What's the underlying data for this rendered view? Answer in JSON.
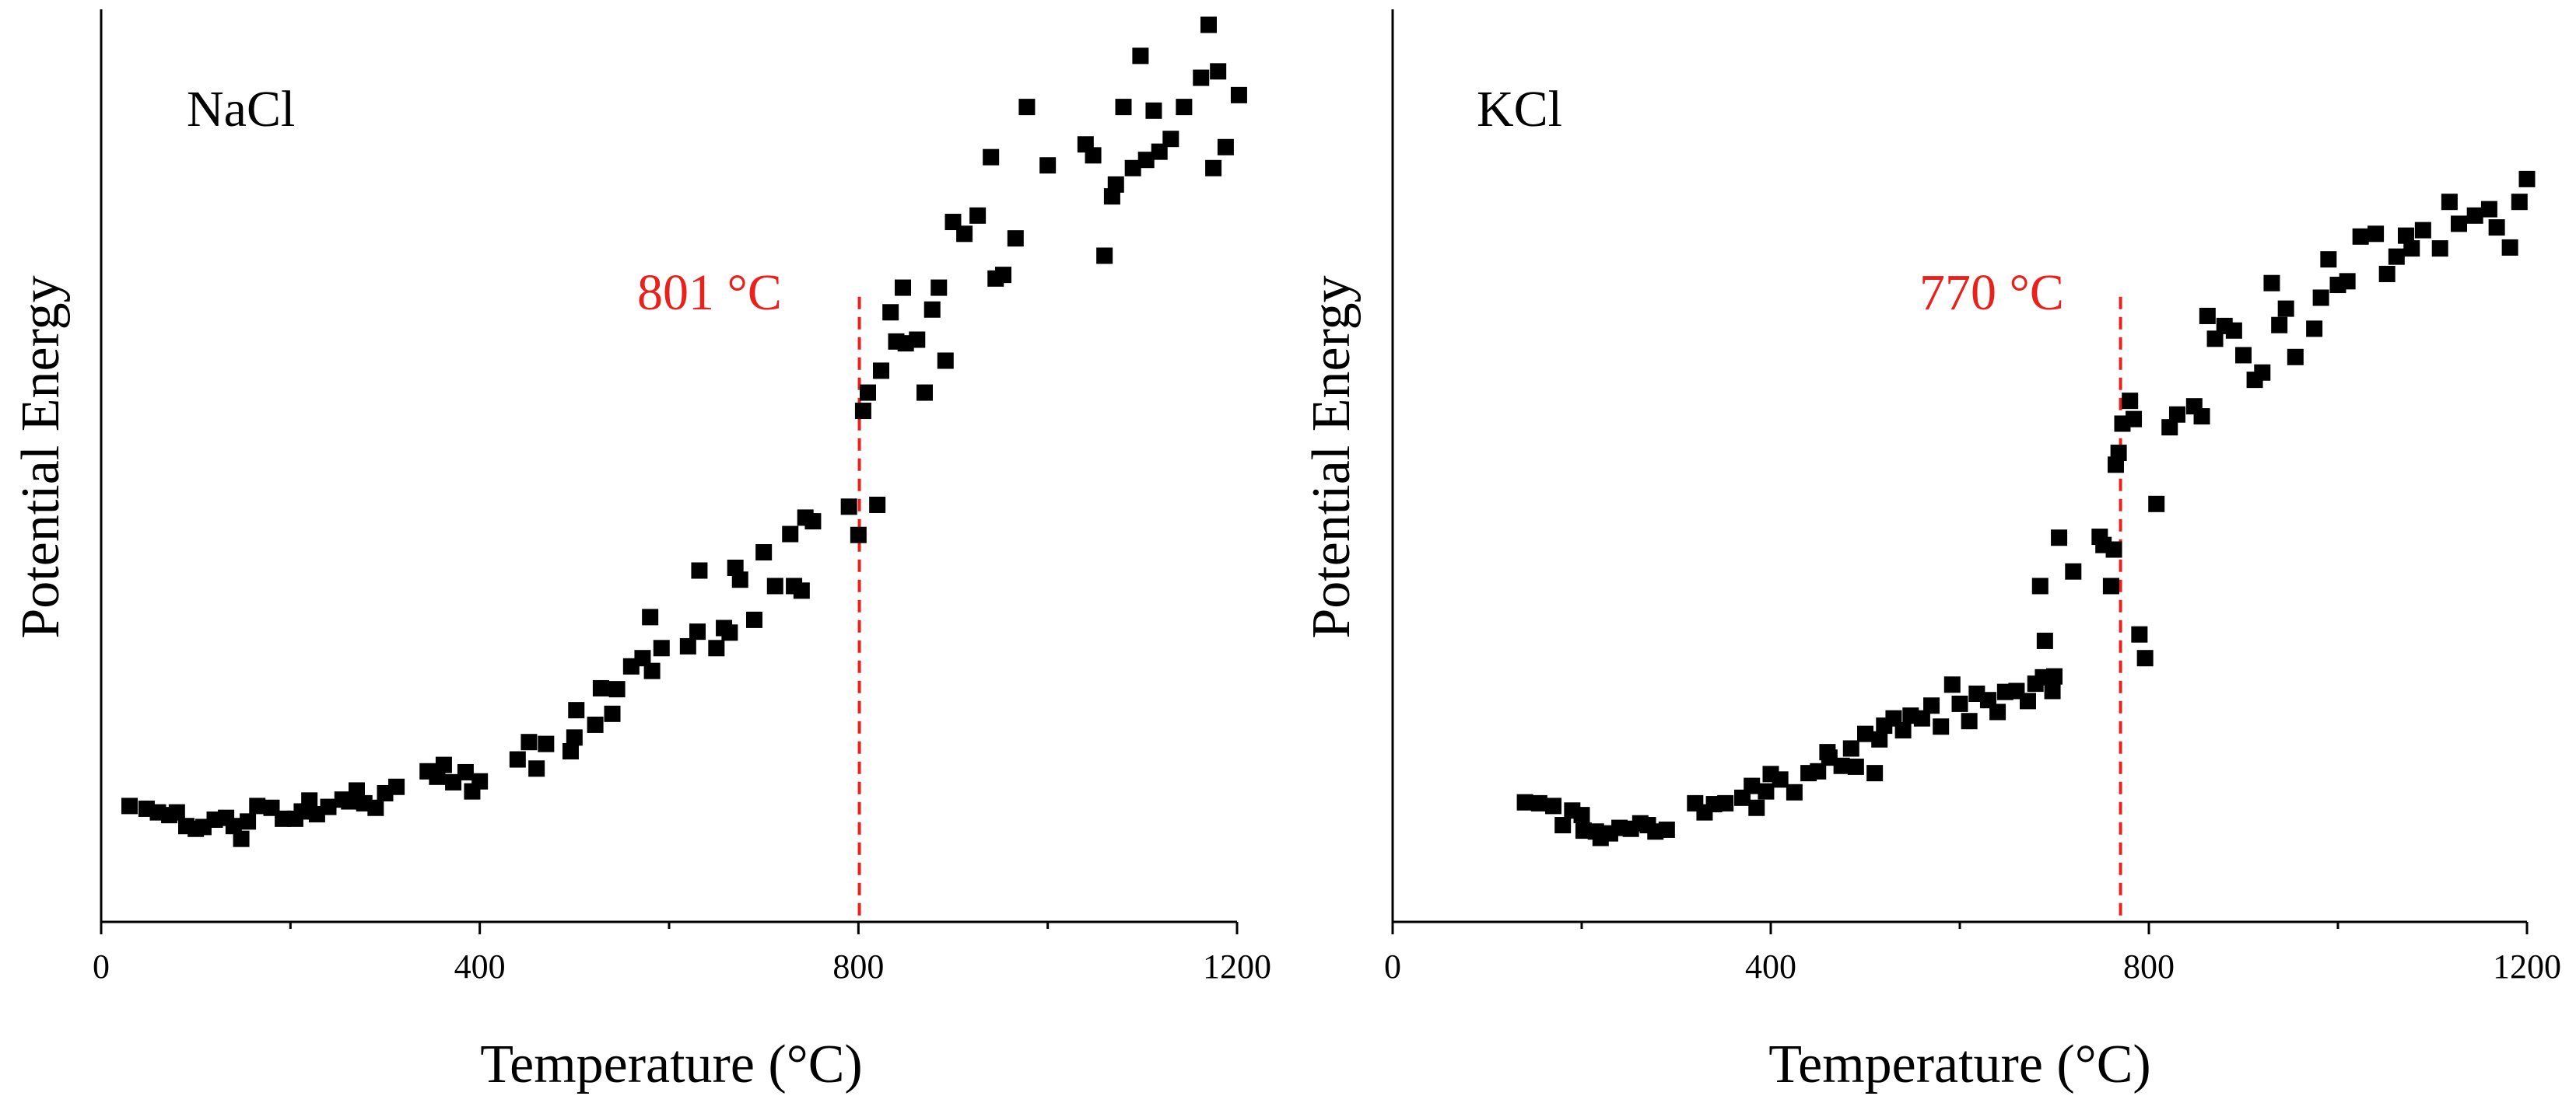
{
  "chart_data": [
    {
      "type": "scatter",
      "panel_label": "NaCl",
      "xlabel": "Temperature (°C)",
      "ylabel": "Potential Energy",
      "xlim": [
        0,
        1200
      ],
      "ylim": [
        0,
        100
      ],
      "xticks": [
        0,
        400,
        800,
        1200
      ],
      "y_tick_labels": false,
      "grid": false,
      "marker": "square",
      "marker_color": "#000000",
      "annotation": {
        "text": "801 °C",
        "x": 801,
        "color": "#e8211d",
        "line_top": 68.5
      },
      "points": [
        [
          30,
          12.7
        ],
        [
          48,
          12.4
        ],
        [
          60,
          12
        ],
        [
          72,
          11.7
        ],
        [
          80,
          12
        ],
        [
          90,
          10.5
        ],
        [
          100,
          10.2
        ],
        [
          108,
          10.4
        ],
        [
          120,
          11.2
        ],
        [
          132,
          11.4
        ],
        [
          140,
          10.5
        ],
        [
          148,
          9.1
        ],
        [
          155,
          11
        ],
        [
          165,
          12.7
        ],
        [
          180,
          12.5
        ],
        [
          192,
          11.3
        ],
        [
          205,
          11.3
        ],
        [
          212,
          12.1
        ],
        [
          220,
          13.3
        ],
        [
          228,
          11.8
        ],
        [
          240,
          12.6
        ],
        [
          255,
          13.4
        ],
        [
          262,
          13.2
        ],
        [
          270,
          14.4
        ],
        [
          278,
          13
        ],
        [
          290,
          12.5
        ],
        [
          300,
          14.1
        ],
        [
          312,
          14.8
        ],
        [
          345,
          16.5
        ],
        [
          355,
          15.9
        ],
        [
          362,
          17.2
        ],
        [
          372,
          15.3
        ],
        [
          385,
          16.4
        ],
        [
          392,
          14.3
        ],
        [
          400,
          15.4
        ],
        [
          440,
          17.8
        ],
        [
          452,
          19.7
        ],
        [
          460,
          16.8
        ],
        [
          470,
          19.5
        ],
        [
          496,
          18.7
        ],
        [
          500,
          20.2
        ],
        [
          502,
          23.2
        ],
        [
          522,
          21.6
        ],
        [
          528,
          25.6
        ],
        [
          540,
          22.8
        ],
        [
          545,
          25.5
        ],
        [
          560,
          28
        ],
        [
          572,
          28.9
        ],
        [
          580,
          33.4
        ],
        [
          582,
          27.5
        ],
        [
          592,
          30
        ],
        [
          620,
          30.2
        ],
        [
          630,
          31.8
        ],
        [
          632,
          38.5
        ],
        [
          650,
          30
        ],
        [
          658,
          32.2
        ],
        [
          664,
          31.7
        ],
        [
          670,
          38.8
        ],
        [
          675,
          37.5
        ],
        [
          690,
          33.1
        ],
        [
          700,
          40.5
        ],
        [
          712,
          36.8
        ],
        [
          728,
          42.5
        ],
        [
          732,
          36.8
        ],
        [
          740,
          36.3
        ],
        [
          744,
          44.3
        ],
        [
          752,
          43.9
        ],
        [
          790,
          45.5
        ],
        [
          800,
          42.4
        ],
        [
          805,
          56
        ],
        [
          810,
          58
        ],
        [
          820,
          45.7
        ],
        [
          824,
          60.4
        ],
        [
          834,
          66.8
        ],
        [
          840,
          63.6
        ],
        [
          847,
          69.5
        ],
        [
          850,
          63.4
        ],
        [
          862,
          63.8
        ],
        [
          870,
          58
        ],
        [
          878,
          67.1
        ],
        [
          885,
          69.5
        ],
        [
          892,
          61.5
        ],
        [
          900,
          76.7
        ],
        [
          912,
          75.4
        ],
        [
          926,
          77.4
        ],
        [
          940,
          83.8
        ],
        [
          945,
          70.5
        ],
        [
          953,
          70.9
        ],
        [
          966,
          74.9
        ],
        [
          978,
          89.3
        ],
        [
          1000,
          82.9
        ],
        [
          1040,
          85.2
        ],
        [
          1048,
          84
        ],
        [
          1060,
          73
        ],
        [
          1068,
          79.5
        ],
        [
          1072,
          80.8
        ],
        [
          1080,
          89.3
        ],
        [
          1090,
          82.6
        ],
        [
          1098,
          94.9
        ],
        [
          1104,
          83.5
        ],
        [
          1112,
          88.9
        ],
        [
          1118,
          84.4
        ],
        [
          1130,
          85.8
        ],
        [
          1144,
          89.3
        ],
        [
          1162,
          92.5
        ],
        [
          1170,
          98.3
        ],
        [
          1175,
          82.6
        ],
        [
          1180,
          93.2
        ],
        [
          1188,
          84.9
        ],
        [
          1202,
          90.6
        ]
      ]
    },
    {
      "type": "scatter",
      "panel_label": "KCl",
      "xlabel": "Temperature (°C)",
      "ylabel": "Potential Energy",
      "xlim": [
        0,
        1200
      ],
      "ylim": [
        0,
        100
      ],
      "xticks": [
        0,
        400,
        800,
        1200
      ],
      "y_tick_labels": false,
      "grid": false,
      "marker": "square",
      "marker_color": "#000000",
      "annotation": {
        "text": "770 °C",
        "x": 770,
        "color": "#e8211d",
        "line_top": 68.5
      },
      "points": [
        [
          140,
          13.1
        ],
        [
          155,
          13
        ],
        [
          170,
          12.7
        ],
        [
          180,
          10.6
        ],
        [
          190,
          12.2
        ],
        [
          200,
          11.7
        ],
        [
          202,
          10
        ],
        [
          215,
          9.9
        ],
        [
          220,
          9.2
        ],
        [
          230,
          9.7
        ],
        [
          240,
          10.3
        ],
        [
          252,
          10.2
        ],
        [
          262,
          10.8
        ],
        [
          270,
          10.6
        ],
        [
          278,
          9.9
        ],
        [
          290,
          10.1
        ],
        [
          320,
          13
        ],
        [
          330,
          12
        ],
        [
          340,
          12.9
        ],
        [
          352,
          13
        ],
        [
          370,
          13.6
        ],
        [
          380,
          14.9
        ],
        [
          385,
          12.5
        ],
        [
          395,
          14.3
        ],
        [
          400,
          16.2
        ],
        [
          410,
          15.6
        ],
        [
          425,
          14.2
        ],
        [
          440,
          16.3
        ],
        [
          450,
          16.5
        ],
        [
          460,
          18.6
        ],
        [
          462,
          18
        ],
        [
          475,
          17.1
        ],
        [
          485,
          19
        ],
        [
          490,
          17
        ],
        [
          500,
          20.6
        ],
        [
          510,
          16.3
        ],
        [
          515,
          20
        ],
        [
          520,
          21.5
        ],
        [
          530,
          22.3
        ],
        [
          540,
          21
        ],
        [
          548,
          22.6
        ],
        [
          560,
          22.3
        ],
        [
          570,
          23.7
        ],
        [
          580,
          21.4
        ],
        [
          592,
          26
        ],
        [
          600,
          23.9
        ],
        [
          610,
          22
        ],
        [
          618,
          25
        ],
        [
          630,
          24.3
        ],
        [
          640,
          23
        ],
        [
          648,
          25.2
        ],
        [
          660,
          25.3
        ],
        [
          672,
          24.2
        ],
        [
          680,
          26.1
        ],
        [
          688,
          26.8
        ],
        [
          698,
          25.3
        ],
        [
          700,
          26.9
        ],
        [
          685,
          36.8
        ],
        [
          690,
          30.8
        ],
        [
          705,
          42.1
        ],
        [
          720,
          38.4
        ],
        [
          748,
          42.2
        ],
        [
          752,
          41.3
        ],
        [
          760,
          36.8
        ],
        [
          763,
          40.8
        ],
        [
          765,
          50.1
        ],
        [
          768,
          51.4
        ],
        [
          772,
          54.6
        ],
        [
          780,
          57.1
        ],
        [
          784,
          55.1
        ],
        [
          790,
          31.5
        ],
        [
          796,
          28.9
        ],
        [
          808,
          45.8
        ],
        [
          822,
          54.2
        ],
        [
          830,
          55.6
        ],
        [
          848,
          56.5
        ],
        [
          856,
          55.4
        ],
        [
          862,
          66.4
        ],
        [
          870,
          63.9
        ],
        [
          880,
          65.3
        ],
        [
          890,
          64.8
        ],
        [
          900,
          62.1
        ],
        [
          912,
          59.4
        ],
        [
          920,
          60.2
        ],
        [
          930,
          70
        ],
        [
          938,
          65.4
        ],
        [
          945,
          67.2
        ],
        [
          955,
          61.9
        ],
        [
          975,
          65
        ],
        [
          982,
          68.4
        ],
        [
          990,
          72.6
        ],
        [
          1000,
          69.8
        ],
        [
          1010,
          70.2
        ],
        [
          1024,
          75.1
        ],
        [
          1040,
          75.4
        ],
        [
          1052,
          71
        ],
        [
          1062,
          72.9
        ],
        [
          1072,
          75.2
        ],
        [
          1078,
          73.8
        ],
        [
          1090,
          75.8
        ],
        [
          1108,
          73.8
        ],
        [
          1118,
          78.9
        ],
        [
          1128,
          76.5
        ],
        [
          1145,
          77.4
        ],
        [
          1160,
          78.1
        ],
        [
          1168,
          76.1
        ],
        [
          1182,
          73.9
        ],
        [
          1192,
          78.9
        ],
        [
          1200,
          81.4
        ]
      ]
    }
  ]
}
